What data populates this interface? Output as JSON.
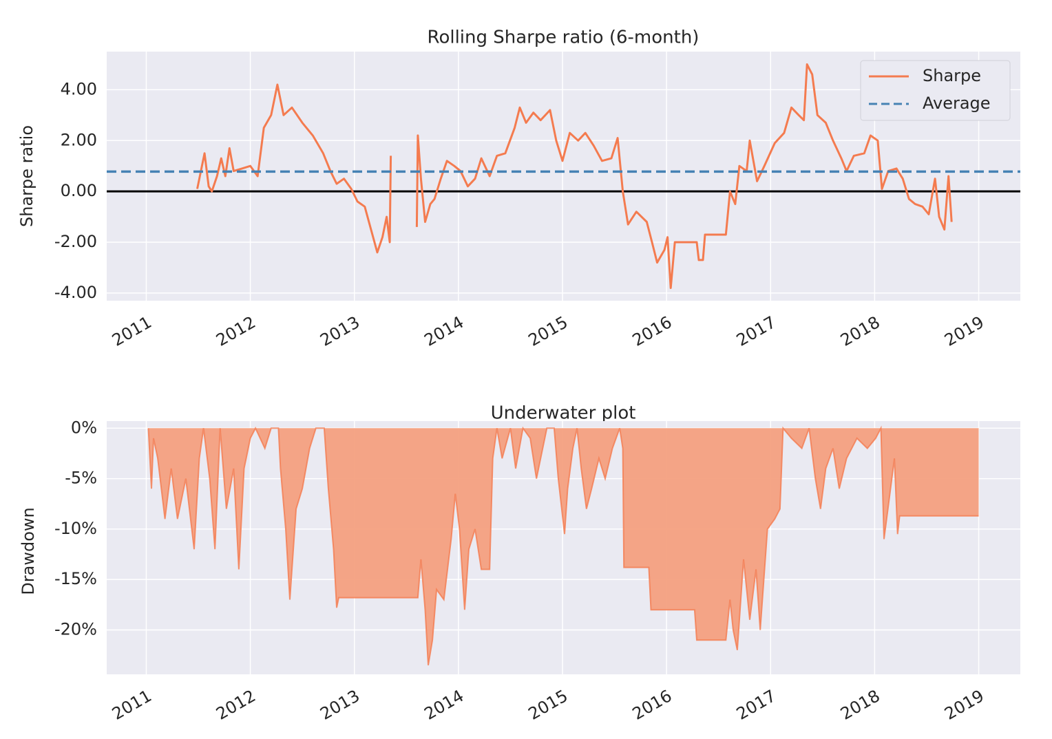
{
  "chart_data": [
    {
      "type": "line",
      "title": "Rolling Sharpe ratio (6-month)",
      "ylabel": "Sharpe ratio",
      "xlim": [
        2010.62,
        2019.4
      ],
      "xticks": [
        2011,
        2012,
        2013,
        2014,
        2015,
        2016,
        2017,
        2018,
        2019
      ],
      "ylim": [
        -4.3,
        5.5
      ],
      "yticks": [
        {
          "value": -4,
          "label": "-4.00"
        },
        {
          "value": -2,
          "label": "-2.00"
        },
        {
          "value": 0,
          "label": "0.00"
        },
        {
          "value": 2,
          "label": "2.00"
        },
        {
          "value": 4,
          "label": "4.00"
        }
      ],
      "grid": true,
      "legend": "upper right",
      "series": [
        {
          "name": "Sharpe",
          "color": "#f47b4f",
          "x": [
            2011.49,
            2011.56,
            2011.6,
            2011.63,
            2011.68,
            2011.72,
            2011.76,
            2011.8,
            2011.84,
            2011.92,
            2012.0,
            2012.07,
            2012.13,
            2012.2,
            2012.26,
            2012.32,
            2012.4,
            2012.5,
            2012.6,
            2012.7,
            2012.77,
            2012.83,
            2012.9,
            2012.97,
            2013.03,
            2013.1,
            2013.16,
            2013.22,
            2013.27,
            2013.31,
            2013.34,
            2013.35,
            2013.45,
            2013.6,
            2013.61,
            2013.64,
            2013.68,
            2013.73,
            2013.77,
            2013.83,
            2013.89,
            2013.96,
            2014.02,
            2014.09,
            2014.16,
            2014.22,
            2014.3,
            2014.37,
            2014.45,
            2014.54,
            2014.59,
            2014.65,
            2014.72,
            2014.79,
            2014.88,
            2014.94,
            2015.0,
            2015.07,
            2015.15,
            2015.22,
            2015.3,
            2015.38,
            2015.47,
            2015.53,
            2015.58,
            2015.63,
            2015.71,
            2015.81,
            2015.86,
            2015.91,
            2015.98,
            2016.01,
            2016.04,
            2016.08,
            2016.29,
            2016.31,
            2016.35,
            2016.37,
            2016.57,
            2016.61,
            2016.66,
            2016.7,
            2016.77,
            2016.8,
            2016.87,
            2016.94,
            2017.04,
            2017.13,
            2017.2,
            2017.27,
            2017.32,
            2017.35,
            2017.4,
            2017.45,
            2017.53,
            2017.6,
            2017.68,
            2017.73,
            2017.8,
            2017.9,
            2017.96,
            2018.03,
            2018.07,
            2018.13,
            2018.21,
            2018.27,
            2018.33,
            2018.39,
            2018.46,
            2018.52,
            2018.58,
            2018.62,
            2018.67,
            2018.71,
            2018.74
          ],
          "values": [
            0.1,
            1.5,
            0.2,
            0.0,
            0.6,
            1.3,
            0.6,
            1.7,
            0.8,
            0.9,
            1.0,
            0.6,
            2.5,
            3.0,
            4.2,
            3.0,
            3.3,
            2.7,
            2.2,
            1.5,
            0.8,
            0.3,
            0.5,
            0.1,
            -0.4,
            -0.6,
            -1.5,
            -2.4,
            -1.8,
            -1.0,
            -2.0,
            1.4,
            null,
            -1.4,
            2.2,
            0.5,
            -1.2,
            -0.5,
            -0.3,
            0.5,
            1.2,
            1.0,
            0.8,
            0.2,
            0.5,
            1.3,
            0.6,
            1.4,
            1.5,
            2.5,
            3.3,
            2.7,
            3.1,
            2.8,
            3.2,
            2.0,
            1.2,
            2.3,
            2.0,
            2.3,
            1.8,
            1.2,
            1.3,
            2.1,
            0.0,
            -1.3,
            -0.8,
            -1.2,
            -2.0,
            -2.8,
            -2.3,
            -1.8,
            -3.8,
            -2.0,
            -2.0,
            -2.7,
            -2.7,
            -1.7,
            -1.7,
            0.0,
            -0.5,
            1.0,
            0.8,
            2.0,
            0.4,
            1.0,
            1.9,
            2.3,
            3.3,
            3.0,
            2.8,
            5.0,
            4.6,
            3.0,
            2.7,
            2.0,
            1.3,
            0.8,
            1.4,
            1.5,
            2.2,
            2.0,
            0.1,
            0.8,
            0.9,
            0.5,
            -0.3,
            -0.5,
            -0.6,
            -0.9,
            0.5,
            -1.0,
            -1.5,
            0.6,
            -1.2
          ]
        }
      ],
      "average_line": {
        "name": "Average",
        "value": 0.78,
        "color": "#4682b4"
      }
    },
    {
      "type": "area",
      "title": "Underwater plot",
      "ylabel": "Drawdown",
      "xlim": [
        2010.62,
        2019.4
      ],
      "xticks": [
        2011,
        2012,
        2013,
        2014,
        2015,
        2016,
        2017,
        2018,
        2019
      ],
      "ylim": [
        -24.4,
        0.7
      ],
      "yticks": [
        {
          "value": -20,
          "label": "-20%"
        },
        {
          "value": -15,
          "label": "-15%"
        },
        {
          "value": -10,
          "label": "-10%"
        },
        {
          "value": -5,
          "label": "-5%"
        },
        {
          "value": 0,
          "label": "0%"
        }
      ],
      "grid": true,
      "color": "#f47b4f",
      "fill": "#f4a07f",
      "x": [
        2011.02,
        2011.05,
        2011.07,
        2011.11,
        2011.18,
        2011.24,
        2011.3,
        2011.38,
        2011.46,
        2011.51,
        2011.55,
        2011.61,
        2011.66,
        2011.71,
        2011.77,
        2011.84,
        2011.89,
        2011.94,
        2012.0,
        2012.05,
        2012.14,
        2012.2,
        2012.27,
        2012.29,
        2012.34,
        2012.38,
        2012.44,
        2012.5,
        2012.57,
        2012.63,
        2012.71,
        2012.75,
        2012.8,
        2012.83,
        2012.85,
        2013.61,
        2013.64,
        2013.68,
        2013.71,
        2013.75,
        2013.79,
        2013.86,
        2013.93,
        2013.97,
        2014.01,
        2014.06,
        2014.1,
        2014.16,
        2014.22,
        2014.3,
        2014.33,
        2014.37,
        2014.42,
        2014.5,
        2014.55,
        2014.62,
        2014.69,
        2014.75,
        2014.85,
        2014.92,
        2014.96,
        2015.02,
        2015.05,
        2015.1,
        2015.14,
        2015.18,
        2015.23,
        2015.28,
        2015.35,
        2015.41,
        2015.48,
        2015.55,
        2015.58,
        2015.59,
        2015.83,
        2015.85,
        2016.27,
        2016.29,
        2016.57,
        2016.61,
        2016.64,
        2016.68,
        2016.74,
        2016.8,
        2016.86,
        2016.9,
        2016.97,
        2017.04,
        2017.09,
        2017.12,
        2017.2,
        2017.3,
        2017.37,
        2017.43,
        2017.48,
        2017.53,
        2017.6,
        2017.66,
        2017.73,
        2017.83,
        2017.93,
        2018.01,
        2018.06,
        2018.09,
        2018.14,
        2018.19,
        2018.22,
        2018.24,
        2019.0
      ],
      "values": [
        0,
        -6.0,
        -1,
        -3,
        -9,
        -4,
        -9,
        -5,
        -12,
        -3,
        0,
        -5,
        -12,
        0,
        -8,
        -4,
        -14,
        -4,
        -1,
        0,
        -2,
        0,
        0,
        -4,
        -10,
        -17,
        -8,
        -6,
        -2,
        0,
        0,
        -6,
        -12,
        -17.8,
        -16.8,
        -16.8,
        -13,
        -18,
        -23.5,
        -21,
        -16,
        -17,
        -11,
        -6.5,
        -10,
        -18,
        -12,
        -10,
        -14,
        -14,
        -3,
        0,
        -3,
        0,
        -4,
        0,
        -1,
        -5,
        0,
        0,
        -5,
        -10.5,
        -6,
        -2,
        0,
        -4,
        -8,
        -6,
        -3,
        -5,
        -2,
        0,
        -2,
        -13.8,
        -13.8,
        -18,
        -18,
        -21,
        -21,
        -17,
        -20,
        -22,
        -13,
        -19,
        -14,
        -20,
        -10,
        -9,
        -8,
        0,
        -1,
        -2,
        0,
        -5,
        -8,
        -4,
        -2,
        -6,
        -3,
        -1,
        -2,
        -1,
        0,
        -11,
        -7,
        -3,
        -10.5,
        -8.7,
        -8.7
      ]
    }
  ]
}
